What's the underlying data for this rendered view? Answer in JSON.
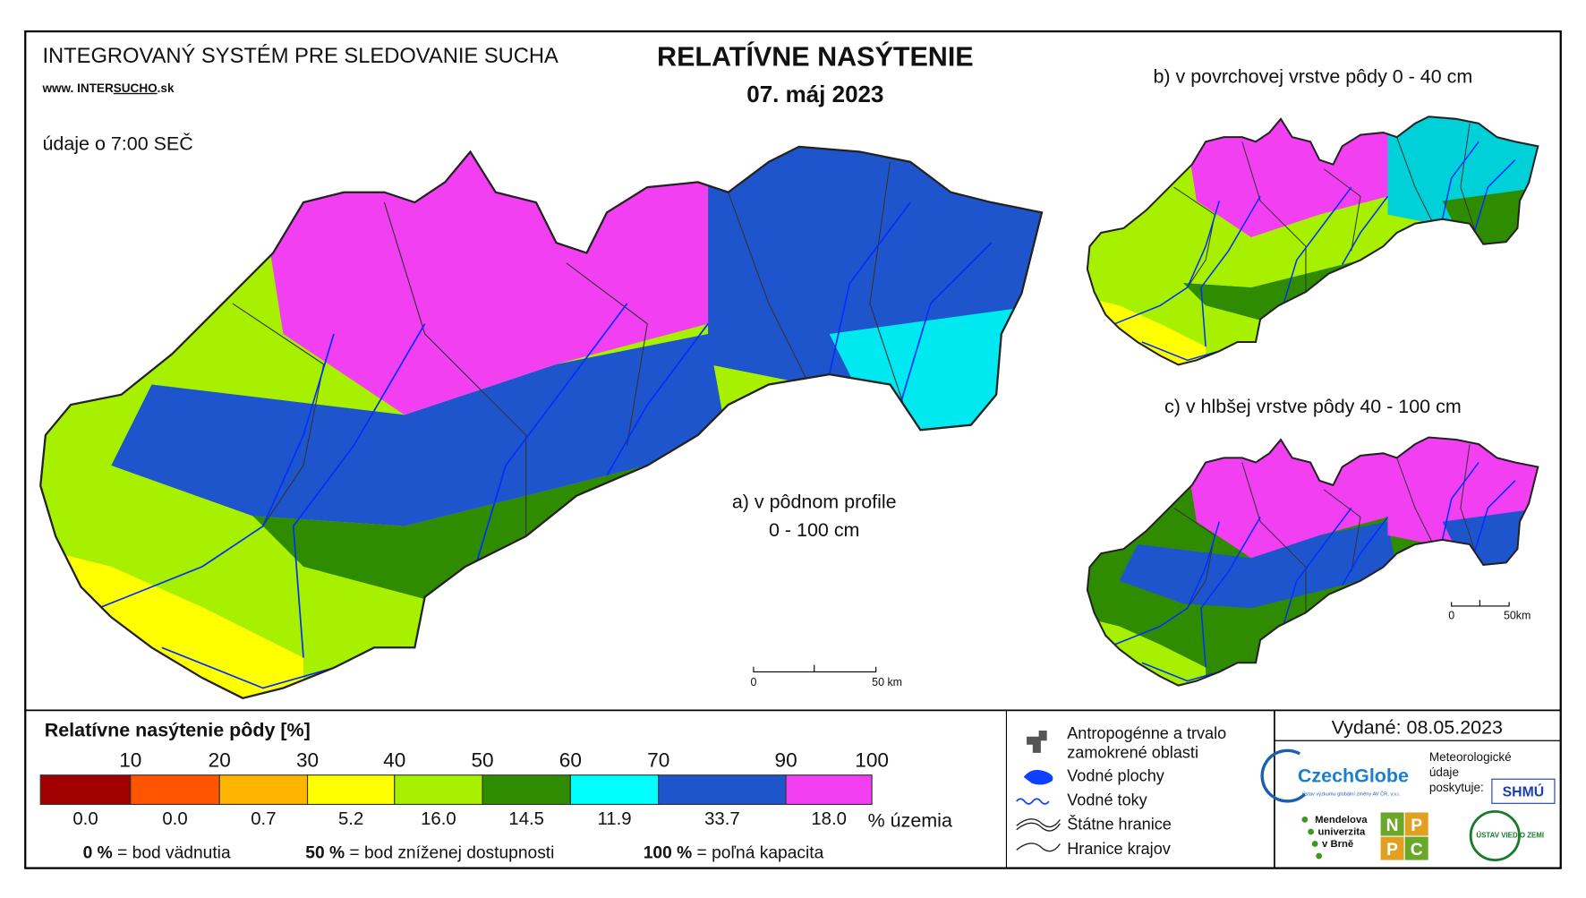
{
  "header": {
    "system_title": "INTEGROVANÝ SYSTÉM PRE SLEDOVANIE SUCHA",
    "website_prefix": "www. INTER",
    "website_highlight": "SUCHO",
    "website_suffix": ".sk",
    "time_note": "údaje o 7:00 SEČ",
    "title": "RELATÍVNE NASÝTENIE",
    "date": "07. máj 2023"
  },
  "maps": [
    {
      "label": "a) v pôdnom profile",
      "sublabel": "0 - 100 cm",
      "scale_start": "0",
      "scale_end": "50 km"
    },
    {
      "label": "b) v povrchovej vrstve pôdy 0 - 40 cm"
    },
    {
      "label": "c) v hlbšej vrstve pôdy 40 - 100 cm",
      "scale_start": "0",
      "scale_end": "50km"
    }
  ],
  "legend": {
    "title": "Relatívne nasýtenie pôdy [%]",
    "thresholds": [
      "10",
      "20",
      "30",
      "40",
      "50",
      "60",
      "70",
      "90",
      "100"
    ],
    "classes": [
      {
        "color": "#a00000",
        "share": "0.0"
      },
      {
        "color": "#ff5500",
        "share": "0.0"
      },
      {
        "color": "#ffb400",
        "share": "0.7"
      },
      {
        "color": "#ffff00",
        "share": "5.2"
      },
      {
        "color": "#a6f000",
        "share": "16.0"
      },
      {
        "color": "#2f8c00",
        "share": "14.5"
      },
      {
        "color": "#00ffff",
        "share": "11.9"
      },
      {
        "color": "#1f55cc",
        "share": "33.7"
      },
      {
        "color": "#f23ff2",
        "share": "18.0"
      }
    ],
    "share_unit": "% územia",
    "notes": [
      {
        "key": "0 %",
        "text": "= bod vädnutia"
      },
      {
        "key": "50 %",
        "text": "= bod zníženej dostupnosti"
      },
      {
        "key": "100 %",
        "text": "= poľná kapacita"
      }
    ]
  },
  "symbols": [
    {
      "lines": [
        "Antropogénne a trvalo",
        "zamokrené oblasti"
      ]
    },
    {
      "lines": [
        "Vodné plochy"
      ]
    },
    {
      "lines": [
        "Vodné toky"
      ]
    },
    {
      "lines": [
        "Štátne hranice"
      ]
    },
    {
      "lines": [
        "Hranice krajov"
      ]
    }
  ],
  "footer": {
    "issued": "Vydané: 08.05.2023",
    "czechglobe": "CzechGlobe",
    "czechglobe_sub": "Ústav výzkumu globální změny AV ČR, v.v.i.",
    "meteo": [
      "Meteorologické",
      "údaje",
      "poskytuje:"
    ],
    "shmu": "SHMÚ",
    "mendel": [
      "Mendelova",
      "univerzita",
      "v Brně"
    ],
    "nppc": [
      "N",
      "P",
      "P",
      "C"
    ],
    "uvz": "ÚSTAV VIED O ZEMI"
  }
}
